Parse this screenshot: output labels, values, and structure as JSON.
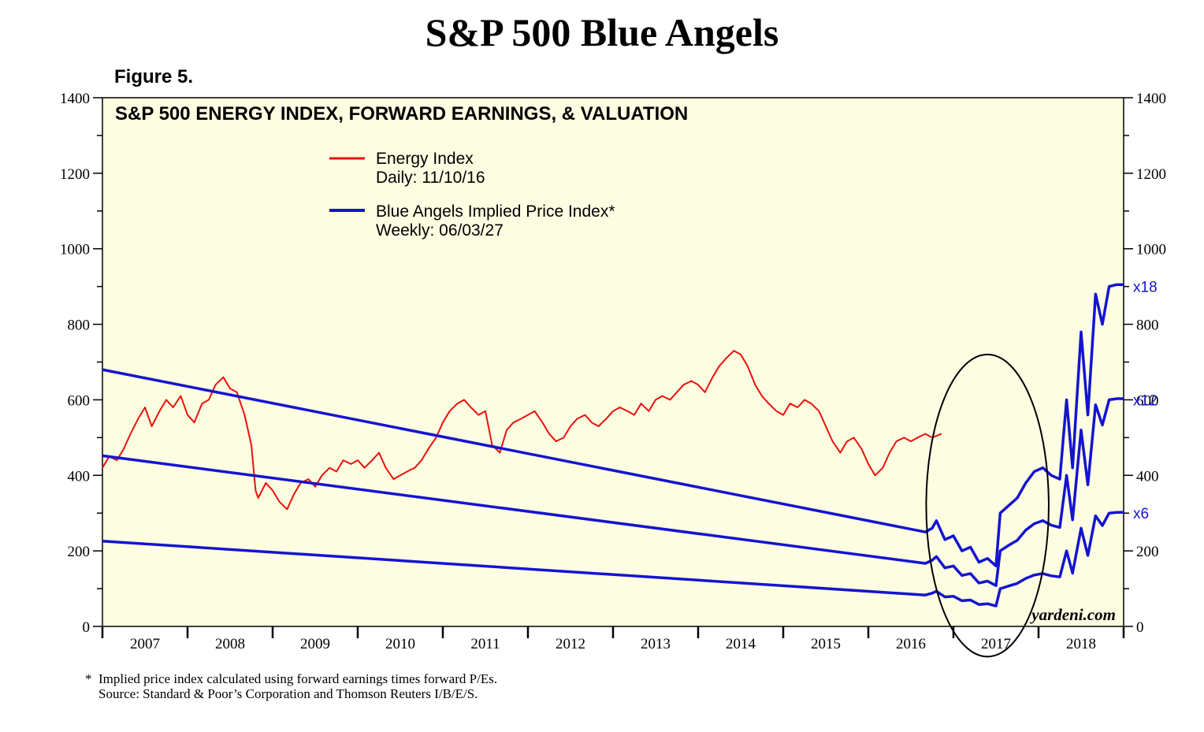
{
  "page": {
    "title": "S&P 500 Blue Angels",
    "figure_label": "Figure 5.",
    "footnote_1": "*  Implied price index calculated using forward earnings times forward P/Es.",
    "footnote_2": "    Source: Standard & Poor’s Corporation and Thomson Reuters I/B/E/S."
  },
  "chart_data": {
    "type": "line",
    "title": "S&P 500 ENERGY INDEX, FORWARD EARNINGS, & VALUATION",
    "xlabel": "",
    "ylabel": "",
    "xlim": [
      2007,
      2019
    ],
    "ylim": [
      0,
      1400
    ],
    "y_ticks": [
      0,
      200,
      400,
      600,
      800,
      1000,
      1200,
      1400
    ],
    "x_tick_labels": [
      "2007",
      "2008",
      "2009",
      "2010",
      "2011",
      "2012",
      "2013",
      "2014",
      "2015",
      "2016",
      "2017",
      "2018"
    ],
    "watermark": "yardeni.com",
    "legend": {
      "placement": "top-center",
      "entries": [
        {
          "line1": "Energy Index",
          "line2": "Daily: 11/10/16",
          "color": "#e8130c"
        },
        {
          "line1": "Blue Angels Implied Price Index*",
          "line2": "Weekly: 06/03/27",
          "color": "#1414d0"
        }
      ]
    },
    "right_labels": [
      {
        "text": "x18",
        "y": 900
      },
      {
        "text": "x12",
        "y": 600
      },
      {
        "text": "x6",
        "y": 300
      }
    ],
    "annotation": {
      "type": "ellipse",
      "center": [
        2017.4,
        320
      ],
      "radius_x": 0.72,
      "radius_y": 400
    },
    "series": [
      {
        "name": "Energy Index",
        "color": "#e8130c",
        "points": [
          [
            2007.0,
            420
          ],
          [
            2007.08,
            450
          ],
          [
            2007.17,
            440
          ],
          [
            2007.25,
            470
          ],
          [
            2007.33,
            510
          ],
          [
            2007.42,
            550
          ],
          [
            2007.5,
            580
          ],
          [
            2007.58,
            530
          ],
          [
            2007.67,
            570
          ],
          [
            2007.75,
            600
          ],
          [
            2007.83,
            580
          ],
          [
            2007.92,
            610
          ],
          [
            2008.0,
            560
          ],
          [
            2008.08,
            540
          ],
          [
            2008.17,
            590
          ],
          [
            2008.25,
            600
          ],
          [
            2008.33,
            640
          ],
          [
            2008.42,
            660
          ],
          [
            2008.5,
            630
          ],
          [
            2008.58,
            620
          ],
          [
            2008.67,
            560
          ],
          [
            2008.75,
            480
          ],
          [
            2008.8,
            360
          ],
          [
            2008.83,
            340
          ],
          [
            2008.92,
            380
          ],
          [
            2009.0,
            360
          ],
          [
            2009.08,
            330
          ],
          [
            2009.17,
            310
          ],
          [
            2009.25,
            350
          ],
          [
            2009.33,
            380
          ],
          [
            2009.42,
            390
          ],
          [
            2009.5,
            370
          ],
          [
            2009.58,
            400
          ],
          [
            2009.67,
            420
          ],
          [
            2009.75,
            410
          ],
          [
            2009.83,
            440
          ],
          [
            2009.92,
            430
          ],
          [
            2010.0,
            440
          ],
          [
            2010.08,
            420
          ],
          [
            2010.17,
            440
          ],
          [
            2010.25,
            460
          ],
          [
            2010.33,
            420
          ],
          [
            2010.42,
            390
          ],
          [
            2010.5,
            400
          ],
          [
            2010.58,
            410
          ],
          [
            2010.67,
            420
          ],
          [
            2010.75,
            440
          ],
          [
            2010.83,
            470
          ],
          [
            2010.92,
            500
          ],
          [
            2011.0,
            540
          ],
          [
            2011.08,
            570
          ],
          [
            2011.17,
            590
          ],
          [
            2011.25,
            600
          ],
          [
            2011.33,
            580
          ],
          [
            2011.42,
            560
          ],
          [
            2011.5,
            570
          ],
          [
            2011.58,
            480
          ],
          [
            2011.67,
            460
          ],
          [
            2011.75,
            520
          ],
          [
            2011.83,
            540
          ],
          [
            2011.92,
            550
          ],
          [
            2012.0,
            560
          ],
          [
            2012.08,
            570
          ],
          [
            2012.17,
            540
          ],
          [
            2012.25,
            510
          ],
          [
            2012.33,
            490
          ],
          [
            2012.42,
            500
          ],
          [
            2012.5,
            530
          ],
          [
            2012.58,
            550
          ],
          [
            2012.67,
            560
          ],
          [
            2012.75,
            540
          ],
          [
            2012.83,
            530
          ],
          [
            2012.92,
            550
          ],
          [
            2013.0,
            570
          ],
          [
            2013.08,
            580
          ],
          [
            2013.17,
            570
          ],
          [
            2013.25,
            560
          ],
          [
            2013.33,
            590
          ],
          [
            2013.42,
            570
          ],
          [
            2013.5,
            600
          ],
          [
            2013.58,
            610
          ],
          [
            2013.67,
            600
          ],
          [
            2013.75,
            620
          ],
          [
            2013.83,
            640
          ],
          [
            2013.92,
            650
          ],
          [
            2014.0,
            640
          ],
          [
            2014.08,
            620
          ],
          [
            2014.17,
            660
          ],
          [
            2014.25,
            690
          ],
          [
            2014.33,
            710
          ],
          [
            2014.42,
            730
          ],
          [
            2014.5,
            720
          ],
          [
            2014.58,
            690
          ],
          [
            2014.67,
            640
          ],
          [
            2014.75,
            610
          ],
          [
            2014.83,
            590
          ],
          [
            2014.92,
            570
          ],
          [
            2015.0,
            560
          ],
          [
            2015.08,
            590
          ],
          [
            2015.17,
            580
          ],
          [
            2015.25,
            600
          ],
          [
            2015.33,
            590
          ],
          [
            2015.42,
            570
          ],
          [
            2015.5,
            530
          ],
          [
            2015.58,
            490
          ],
          [
            2015.67,
            460
          ],
          [
            2015.75,
            490
          ],
          [
            2015.83,
            500
          ],
          [
            2015.92,
            470
          ],
          [
            2016.0,
            430
          ],
          [
            2016.08,
            400
          ],
          [
            2016.17,
            420
          ],
          [
            2016.25,
            460
          ],
          [
            2016.33,
            490
          ],
          [
            2016.42,
            500
          ],
          [
            2016.5,
            490
          ],
          [
            2016.58,
            500
          ],
          [
            2016.67,
            510
          ],
          [
            2016.75,
            500
          ],
          [
            2016.86,
            510
          ]
        ]
      },
      {
        "name": "Blue Angels x18",
        "color": "#1414d0",
        "points": [
          [
            2007.0,
            680
          ],
          [
            2016.67,
            250
          ],
          [
            2016.75,
            260
          ],
          [
            2016.8,
            280
          ],
          [
            2016.9,
            230
          ],
          [
            2017.0,
            240
          ],
          [
            2017.1,
            200
          ],
          [
            2017.2,
            210
          ],
          [
            2017.3,
            170
          ],
          [
            2017.4,
            180
          ],
          [
            2017.5,
            160
          ],
          [
            2017.55,
            300
          ],
          [
            2017.65,
            320
          ],
          [
            2017.75,
            340
          ],
          [
            2017.85,
            380
          ],
          [
            2017.95,
            410
          ],
          [
            2018.05,
            420
          ],
          [
            2018.15,
            400
          ],
          [
            2018.25,
            390
          ],
          [
            2018.33,
            600
          ],
          [
            2018.4,
            420
          ],
          [
            2018.5,
            780
          ],
          [
            2018.58,
            560
          ],
          [
            2018.67,
            880
          ],
          [
            2018.75,
            800
          ],
          [
            2018.83,
            900
          ],
          [
            2018.92,
            905
          ],
          [
            2019.0,
            905
          ]
        ]
      },
      {
        "name": "Blue Angels x12",
        "color": "#1414d0",
        "points": [
          [
            2007.0,
            452
          ],
          [
            2016.67,
            167
          ],
          [
            2016.75,
            175
          ],
          [
            2016.8,
            185
          ],
          [
            2016.9,
            155
          ],
          [
            2017.0,
            160
          ],
          [
            2017.1,
            135
          ],
          [
            2017.2,
            140
          ],
          [
            2017.3,
            115
          ],
          [
            2017.4,
            120
          ],
          [
            2017.5,
            108
          ],
          [
            2017.55,
            200
          ],
          [
            2017.65,
            215
          ],
          [
            2017.75,
            228
          ],
          [
            2017.85,
            255
          ],
          [
            2017.95,
            272
          ],
          [
            2018.05,
            280
          ],
          [
            2018.15,
            268
          ],
          [
            2018.25,
            262
          ],
          [
            2018.33,
            400
          ],
          [
            2018.4,
            282
          ],
          [
            2018.5,
            520
          ],
          [
            2018.58,
            375
          ],
          [
            2018.67,
            587
          ],
          [
            2018.75,
            533
          ],
          [
            2018.83,
            600
          ],
          [
            2018.92,
            603
          ],
          [
            2019.0,
            603
          ]
        ]
      },
      {
        "name": "Blue Angels x6",
        "color": "#1414d0",
        "points": [
          [
            2007.0,
            226
          ],
          [
            2016.67,
            83
          ],
          [
            2016.75,
            88
          ],
          [
            2016.8,
            93
          ],
          [
            2016.9,
            78
          ],
          [
            2017.0,
            80
          ],
          [
            2017.1,
            68
          ],
          [
            2017.2,
            70
          ],
          [
            2017.3,
            58
          ],
          [
            2017.4,
            60
          ],
          [
            2017.5,
            54
          ],
          [
            2017.55,
            100
          ],
          [
            2017.65,
            107
          ],
          [
            2017.75,
            114
          ],
          [
            2017.85,
            127
          ],
          [
            2017.95,
            136
          ],
          [
            2018.05,
            140
          ],
          [
            2018.15,
            134
          ],
          [
            2018.25,
            131
          ],
          [
            2018.33,
            200
          ],
          [
            2018.4,
            141
          ],
          [
            2018.5,
            260
          ],
          [
            2018.58,
            188
          ],
          [
            2018.67,
            293
          ],
          [
            2018.75,
            267
          ],
          [
            2018.83,
            300
          ],
          [
            2018.92,
            302
          ],
          [
            2019.0,
            302
          ]
        ]
      }
    ]
  }
}
